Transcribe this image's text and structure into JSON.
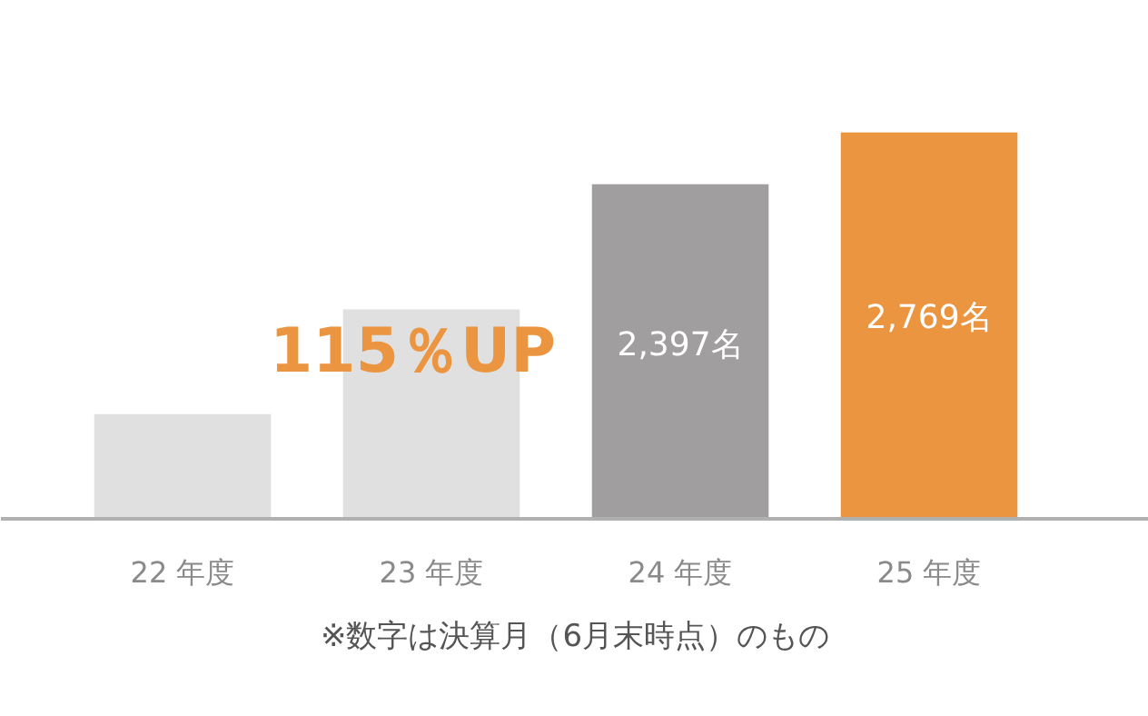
{
  "chart_data": {
    "type": "bar",
    "categories": [
      "22 年度",
      "23 年度",
      "24 年度",
      "25 年度"
    ],
    "values": [
      750,
      1500,
      2397,
      2769
    ],
    "colors": [
      "#e0e0e0",
      "#e0e0e0",
      "#a09e9e",
      "#ec9540"
    ],
    "value_labels": [
      null,
      null,
      "2,397名",
      "2,769名"
    ],
    "annotations": [
      "115％UP",
      "※数字は決算月（6月末時点）のもの"
    ],
    "grid": false
  }
}
